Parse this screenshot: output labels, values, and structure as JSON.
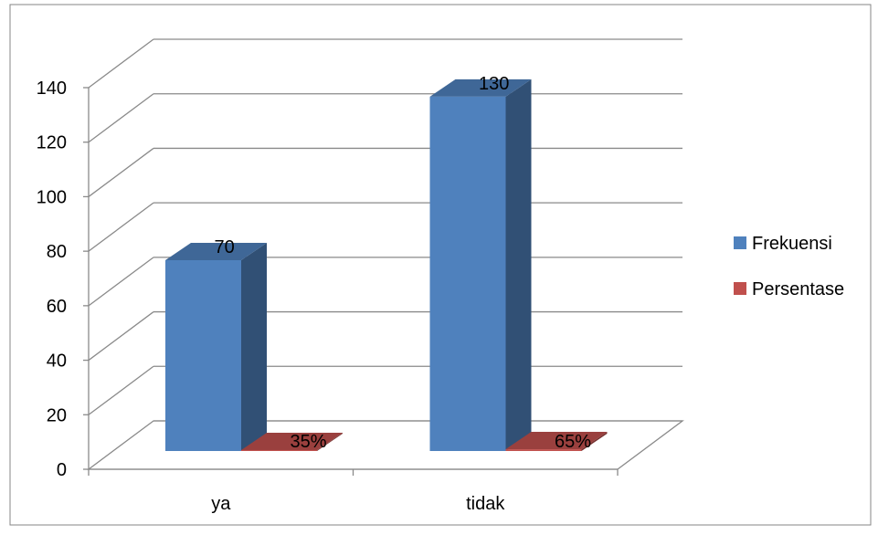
{
  "chart_data": {
    "type": "bar",
    "title": "",
    "xlabel": "",
    "ylabel": "",
    "categories": [
      "ya",
      "tidak"
    ],
    "ylim": [
      0,
      140
    ],
    "yticks": [
      0,
      20,
      40,
      60,
      80,
      100,
      120,
      140
    ],
    "grid": true,
    "legend_position": "right",
    "series": [
      {
        "name": "Frekuensi",
        "values": [
          70,
          130
        ],
        "labels": [
          "70",
          "130"
        ],
        "color": "#4F81BD"
      },
      {
        "name": "Persentase",
        "values": [
          0.35,
          0.65
        ],
        "labels": [
          "35%",
          "65%"
        ],
        "color": "#C0504D"
      }
    ]
  }
}
